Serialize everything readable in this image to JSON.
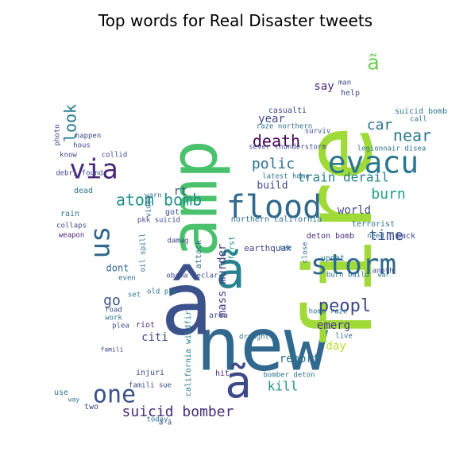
{
  "chart_data": {
    "type": "wordcloud",
    "title": "Top words for Real Disaster tweets",
    "words": [
      {
        "text": "new"
      },
      {
        "text": "fire"
      },
      {
        "text": "â"
      },
      {
        "text": "amp"
      },
      {
        "text": "ã"
      },
      {
        "text": "ã"
      },
      {
        "text": "flood"
      },
      {
        "text": "evacu"
      },
      {
        "text": "storm"
      },
      {
        "text": "via"
      },
      {
        "text": "us"
      },
      {
        "text": "one"
      },
      {
        "text": "death"
      },
      {
        "text": "peopl"
      },
      {
        "text": "atom bomb"
      },
      {
        "text": "suicid bomber"
      },
      {
        "text": "burn"
      },
      {
        "text": "train derail"
      },
      {
        "text": "near"
      },
      {
        "text": "car"
      },
      {
        "text": "time"
      },
      {
        "text": "polic"
      },
      {
        "text": "look"
      },
      {
        "text": "kill"
      },
      {
        "text": "world"
      },
      {
        "text": "mass murder"
      },
      {
        "text": "emerg"
      },
      {
        "text": "go"
      },
      {
        "text": "report"
      },
      {
        "text": "year"
      },
      {
        "text": "day"
      },
      {
        "text": "build"
      },
      {
        "text": "citi"
      },
      {
        "text": "rt"
      },
      {
        "text": "dont"
      },
      {
        "text": "say"
      },
      {
        "text": "suicid bomb"
      },
      {
        "text": "northern california"
      },
      {
        "text": "earthquak"
      },
      {
        "text": "attack"
      },
      {
        "text": "ã"
      },
      {
        "text": "riot"
      },
      {
        "text": "help"
      },
      {
        "text": "california wildfir"
      },
      {
        "text": "legionnair disea"
      },
      {
        "text": "first"
      },
      {
        "text": "updat"
      },
      {
        "text": "latest home"
      },
      {
        "text": "deton bomb"
      },
      {
        "text": "casualti"
      },
      {
        "text": "obama declar"
      },
      {
        "text": "hit"
      },
      {
        "text": "burn build"
      },
      {
        "text": "terrorist"
      },
      {
        "text": "raze northern"
      },
      {
        "text": "sever thunderstorm"
      },
      {
        "text": "home raze"
      },
      {
        "text": "bomber deton"
      },
      {
        "text": "need"
      },
      {
        "text": "back"
      },
      {
        "text": "dead"
      },
      {
        "text": "debri found"
      },
      {
        "text": "pkk suicid"
      },
      {
        "text": "area"
      },
      {
        "text": "two"
      },
      {
        "text": "use"
      },
      {
        "text": "injuri"
      },
      {
        "text": "famili sue"
      },
      {
        "text": "video"
      },
      {
        "text": "rain"
      },
      {
        "text": "weapon"
      },
      {
        "text": "collaps"
      },
      {
        "text": "got"
      },
      {
        "text": "warn"
      },
      {
        "text": "photo"
      },
      {
        "text": "man"
      },
      {
        "text": "surviv"
      },
      {
        "text": "live"
      },
      {
        "text": "drought"
      },
      {
        "text": "today"
      },
      {
        "text": "work"
      },
      {
        "text": "plea"
      },
      {
        "text": "road"
      },
      {
        "text": "old pkk"
      },
      {
        "text": "even"
      },
      {
        "text": "set"
      },
      {
        "text": "see"
      },
      {
        "text": "close"
      },
      {
        "text": "anoth"
      },
      {
        "text": "damag"
      },
      {
        "text": "oil spill"
      },
      {
        "text": "happen"
      },
      {
        "text": "know"
      },
      {
        "text": "collid"
      },
      {
        "text": "hous"
      },
      {
        "text": "call"
      },
      {
        "text": "war"
      },
      {
        "text": "way"
      },
      {
        "text": "famili"
      },
      {
        "text": "â â"
      }
    ]
  }
}
